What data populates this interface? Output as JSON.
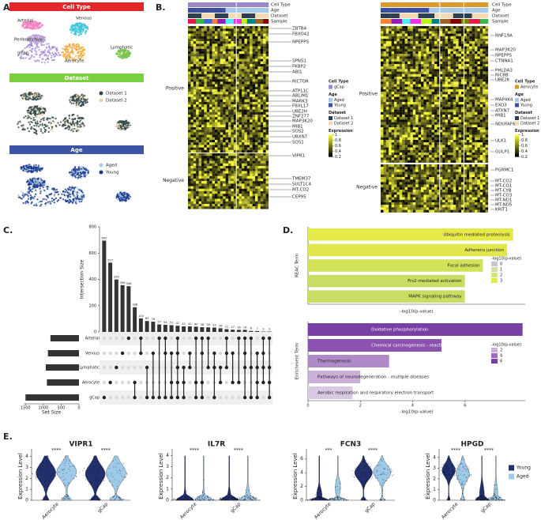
{
  "panel_labels": [
    "A.",
    "B.",
    "C.",
    "D.",
    "E."
  ],
  "umap": [
    {
      "title": "Cell Type",
      "color": "#e2262a",
      "labels": [
        "Arterial",
        "Venous",
        "Peribronchial",
        "gCap",
        "Aerocyte",
        "Lymphatic"
      ],
      "colors": [
        "#f47fc0",
        "#3cc6d8",
        "#b9a0d6",
        "#a98ad8",
        "#f2a93b",
        "#7cc44f"
      ]
    },
    {
      "title": "Dataset",
      "color": "#7ccf3f",
      "legend": [
        {
          "name": "Dataset 1",
          "color": "#2f4a4e"
        },
        {
          "name": "Dataset 2",
          "color": "#f0d2a8"
        }
      ]
    },
    {
      "title": "Age",
      "color": "#3a55a4",
      "legend": [
        {
          "name": "Aged",
          "color": "#a9cbe8"
        },
        {
          "name": "Young",
          "color": "#1c3a8c"
        }
      ]
    }
  ],
  "heatmaps": [
    {
      "annotations": [
        "Cell Type",
        "Age",
        "Dataset",
        "Sample"
      ],
      "groups": [
        "Positive",
        "Negative"
      ],
      "genes": [
        [
          "ZBTB4",
          "FBXO42",
          "NPEPPS",
          "SPNS1",
          "FKBP2",
          "ABI1",
          "RICTOR",
          "ATP11C",
          "ABLIM1",
          "MARK3",
          "FBXL17",
          "UBE2H",
          "ZNF277",
          "MAP3K20",
          "MIB1",
          "SOS2",
          "UBXN7",
          "SOS1"
        ],
        [
          "VIPR1",
          "TMEM37",
          "SULT1C4",
          "MT-CO2",
          "CEP95"
        ]
      ],
      "legend": [
        {
          "title": "Cell Type",
          "items": [
            {
              "name": "gCap",
              "color": "#9b86c9"
            }
          ]
        },
        {
          "title": "Age",
          "items": [
            {
              "name": "Aged",
              "color": "#a7c7e7"
            },
            {
              "name": "Young",
              "color": "#3b4f9c"
            }
          ]
        },
        {
          "title": "Dataset",
          "items": [
            {
              "name": "Dataset 1",
              "color": "#2c3e50"
            },
            {
              "name": "Dataset 2",
              "color": "#f3d9b1"
            }
          ]
        }
      ],
      "expression": {
        "title": "Expression",
        "ticks": [
          1,
          0.8,
          0.6,
          0.4,
          0.2
        ],
        "colors": [
          "#000000",
          "#f5f53a"
        ]
      }
    },
    {
      "annotations": [
        "Cell Type",
        "Age",
        "Dataset",
        "Sample"
      ],
      "groups": [
        "Positive",
        "Negative"
      ],
      "genes": [
        [
          "RNF19A",
          "MAP3K20",
          "NPEPPS",
          "CTNNA1",
          "PHLDA3",
          "RIC8B",
          "UBE2K",
          "MAP4K4",
          "EXO3",
          "ATXN7",
          "MIB1",
          "NDUFAF6",
          "ULK1",
          "GULP1"
        ],
        [
          "PGRMC1",
          "MT-CO2",
          "MT-CO1",
          "MT-CYB",
          "MT-CO3",
          "MT-ND1",
          "MT-ND5",
          "KRIT1"
        ]
      ],
      "legend": [
        {
          "title": "Cell Type",
          "items": [
            {
              "name": "Aerocyte",
              "color": "#d99a2b"
            }
          ]
        },
        {
          "title": "Age",
          "items": [
            {
              "name": "Aged",
              "color": "#a7c7e7"
            },
            {
              "name": "Young",
              "color": "#3b4f9c"
            }
          ]
        },
        {
          "title": "Dataset",
          "items": [
            {
              "name": "Dataset 1",
              "color": "#2c3e50"
            },
            {
              "name": "Dataset 2",
              "color": "#f3d9b1"
            }
          ]
        }
      ],
      "expression": {
        "title": "Expression",
        "ticks": [
          1,
          0.8,
          0.6,
          0.4,
          0.2
        ],
        "colors": [
          "#000000",
          "#f5f53a"
        ]
      }
    }
  ],
  "chart_data": [
    {
      "type": "bar",
      "ylabel": "Intersection Size",
      "values": [
        695,
        527,
        399,
        356,
        348,
        188,
        103,
        83,
        78,
        57,
        54,
        51,
        47,
        42,
        42,
        40,
        36,
        35,
        33,
        28,
        21,
        17,
        16,
        16,
        8,
        7,
        3,
        3
      ],
      "ylim": [
        0,
        800
      ],
      "yticks": [
        0,
        200,
        400,
        600,
        800
      ],
      "color": "#333333",
      "memberships": [
        [
          4
        ],
        [
          3
        ],
        [
          2
        ],
        [
          1
        ],
        [
          0
        ],
        [
          3,
          4
        ],
        [
          0,
          1
        ],
        [
          2,
          4
        ],
        [
          1,
          4
        ],
        [
          0,
          4
        ],
        [
          0,
          1,
          4
        ],
        [
          1,
          3,
          4
        ],
        [
          0,
          1,
          2,
          3,
          4
        ],
        [
          2,
          3,
          4
        ],
        [
          1,
          2
        ],
        [
          0,
          3,
          4
        ],
        [
          0,
          1,
          3,
          4
        ],
        [
          0,
          2
        ],
        [
          1,
          2,
          4
        ],
        [
          2,
          3
        ],
        [
          0,
          1,
          2
        ],
        [
          1,
          3
        ],
        [
          0,
          3
        ],
        [
          0,
          1,
          2,
          4
        ],
        [
          0,
          2,
          4
        ],
        [
          1,
          2,
          3,
          4
        ],
        [
          0,
          1,
          2,
          3
        ],
        [
          0,
          2,
          3,
          4
        ]
      ]
    },
    {
      "type": "barh",
      "xlabel": "Set Size",
      "categories": [
        "Arterial",
        "Venous",
        "Lymphatic",
        "Aerocyte",
        "gCap"
      ],
      "values": [
        800,
        870,
        930,
        900,
        1500
      ],
      "xlim": [
        0,
        1550
      ],
      "xticks": [
        1500,
        1000,
        500,
        0
      ],
      "color": "#333333"
    },
    {
      "type": "barh",
      "ylabel": "REAC Term",
      "xlabel": "-log10(p-value)",
      "categories": [
        "Ubiquitin mediated proteolysis",
        "Adherens junction",
        "Focal adhesion",
        "Frs2-mediated activation",
        "MAPK signaling pathway"
      ],
      "values": [
        3.4,
        3.3,
        2.9,
        2.6,
        2.6
      ],
      "colors": [
        "#e4ea48",
        "#dfe74c",
        "#d2e258",
        "#c8dd62",
        "#c8dd62"
      ],
      "xlim": [
        0,
        3.6
      ],
      "legend_title": "-log10(p-value)",
      "legend_ticks": [
        0,
        1,
        2,
        3
      ],
      "legend_colors": [
        "#c8c8c8",
        "#d4dcae",
        "#d6e27a",
        "#e4ea48"
      ]
    },
    {
      "type": "barh",
      "ylabel": "Enrichment Term",
      "xlabel": "-log10(p-value)",
      "categories": [
        "Oxidative phosphorylation",
        "Chemical carcinogenesis - reactive oxygen species",
        "Thermogenesis",
        "Pathways of neurodegeneration - multiple diseases",
        "Aerobic respiration and respiratory electron transport"
      ],
      "values": [
        8.2,
        5.1,
        3.1,
        2.0,
        1.7
      ],
      "colors": [
        "#7a3fa4",
        "#8b52b0",
        "#b08ac8",
        "#c9afd9",
        "#d8c8e3"
      ],
      "xlim": [
        0,
        8.3
      ],
      "xticks": [
        0,
        2,
        4,
        6
      ],
      "legend_title": "-log10(p-value)",
      "legend_ticks": [
        2,
        4,
        6
      ],
      "legend_colors": [
        "#c9afd9",
        "#9b6bbd",
        "#7a3fa4"
      ]
    },
    {
      "type": "violin",
      "title": "VIPR1",
      "ylabel": "Expression Level",
      "categories": [
        "Aerocyte",
        "gCap"
      ],
      "ylim": [
        0,
        4.4
      ],
      "yticks": [
        0,
        1,
        2,
        3,
        4
      ],
      "significance": [
        "****",
        "****"
      ],
      "series": [
        {
          "name": "Young",
          "color": "#22306e"
        },
        {
          "name": "Aged",
          "color": "#9ecae9"
        }
      ]
    },
    {
      "type": "violin",
      "title": "IL7R",
      "ylabel": "Expression Level",
      "categories": [
        "Aerocyte",
        "gCap"
      ],
      "ylim": [
        0,
        4.3
      ],
      "yticks": [
        0,
        1,
        2,
        3,
        4
      ],
      "significance": [
        "****",
        "****"
      ],
      "series": [
        {
          "name": "Young",
          "color": "#22306e"
        },
        {
          "name": "Aged",
          "color": "#9ecae9"
        }
      ]
    },
    {
      "type": "violin",
      "title": "FCN3",
      "ylabel": "Expression Level",
      "categories": [
        "Aerocyte",
        "gCap"
      ],
      "ylim": [
        0,
        7
      ],
      "yticks": [
        0,
        2,
        4,
        6
      ],
      "significance": [
        "***",
        "****"
      ],
      "series": [
        {
          "name": "Young",
          "color": "#22306e"
        },
        {
          "name": "Aged",
          "color": "#9ecae9"
        }
      ]
    },
    {
      "type": "violin",
      "title": "HPGD",
      "ylabel": "Expression Level",
      "categories": [
        "Aerocyte",
        "gCap"
      ],
      "ylim": [
        0,
        4.5
      ],
      "yticks": [
        0,
        1,
        2,
        3,
        4
      ],
      "significance": [
        "****",
        "****"
      ],
      "series": [
        {
          "name": "Young",
          "color": "#22306e"
        },
        {
          "name": "Aged",
          "color": "#9ecae9"
        }
      ]
    }
  ]
}
